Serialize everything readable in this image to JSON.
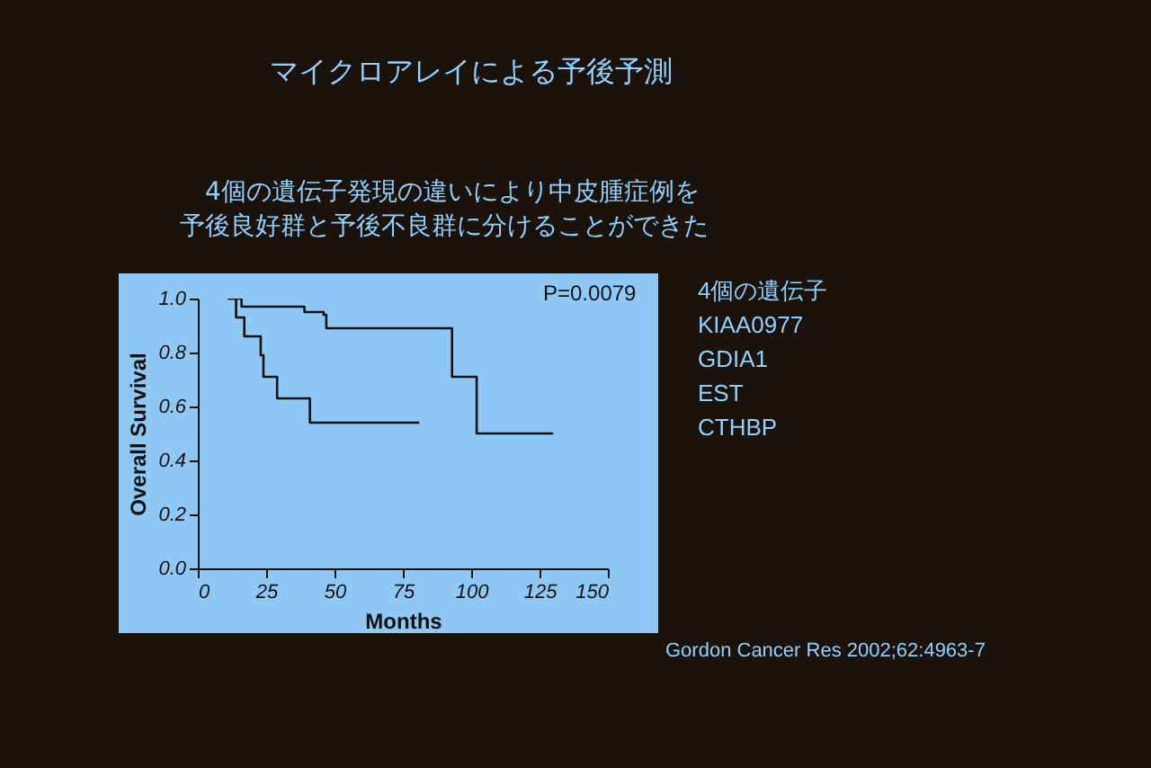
{
  "chart_data": {
    "type": "step",
    "title": "マイクロアレイによる予後予測",
    "subtitle": "4個の遺伝子発現の違いにより中皮腫症例を予後良好群と予後不良群に分けることができた",
    "xlabel": "Months",
    "ylabel": "Overall Survival",
    "series": [
      {
        "color": "#111111",
        "x": [
          11,
          16,
          39,
          46,
          47,
          93,
          102,
          130
        ],
        "values": [
          1.0,
          0.97,
          0.95,
          0.94,
          0.89,
          0.71,
          0.5,
          0.5
        ]
      },
      {
        "color": "#111111",
        "x": [
          11,
          14,
          17,
          23,
          24,
          29,
          41,
          81
        ],
        "values": [
          1.0,
          0.93,
          0.86,
          0.79,
          0.71,
          0.63,
          0.54,
          0.54
        ]
      }
    ],
    "xlim": [
      0,
      150
    ],
    "xticks": [
      0,
      25,
      50,
      75,
      100,
      125,
      150
    ],
    "ylim": [
      0,
      1.0
    ],
    "yticks": [
      {
        "value": 0,
        "label": "0.0"
      },
      0.2,
      0.4,
      0.6,
      0.8,
      {
        "value": 1,
        "label": "1.0"
      }
    ],
    "grid": false,
    "annotations": [
      "P=0.0079",
      "4個の遺伝子",
      "KIAA0977",
      "GDIA1",
      "EST",
      "CTHBP",
      "Gordon Cancer Res 2002;62:4963-7"
    ]
  }
}
